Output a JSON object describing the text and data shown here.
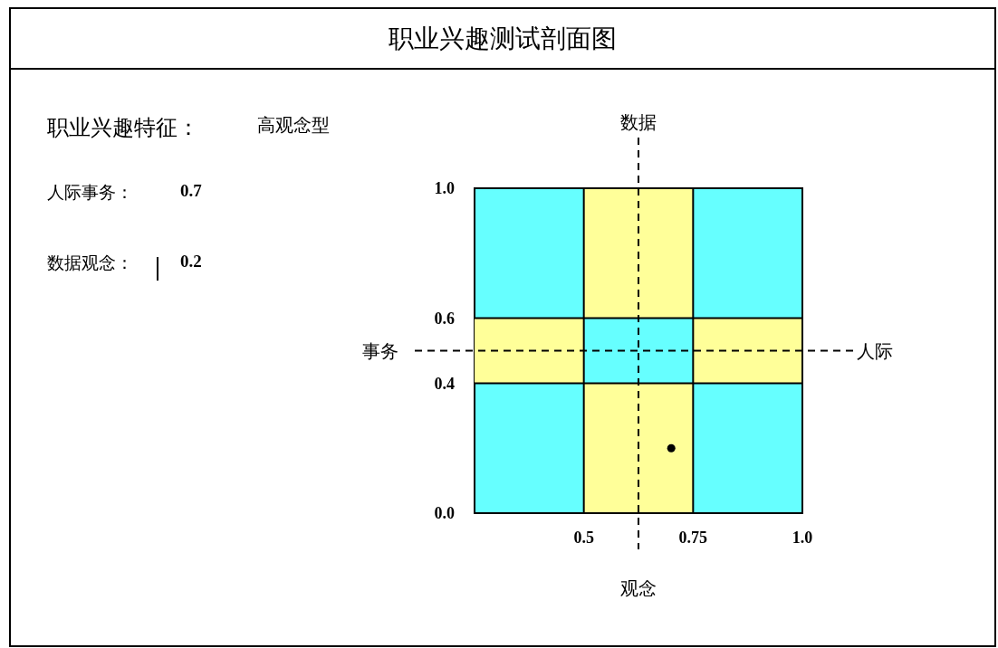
{
  "chart_data": {
    "type": "scatter",
    "title": "职业兴趣测试剖面图",
    "x": [
      0.7
    ],
    "values": [
      0.2
    ],
    "color": "#000000",
    "marker": "circle",
    "xlim": [
      0.25,
      1.0
    ],
    "ylim": [
      0.0,
      1.0
    ],
    "xticks": [
      {
        "value": 0.5,
        "label": "0.5"
      },
      {
        "value": 0.75,
        "label": "0.75"
      },
      {
        "value": 1.0,
        "label": "1.0"
      }
    ],
    "yticks": [
      {
        "value": 0,
        "label": "0.0"
      },
      {
        "value": 0.4,
        "label": "0.4"
      },
      {
        "value": 0.6,
        "label": "0.6"
      },
      {
        "value": 1.0,
        "label": "1.0"
      }
    ],
    "grid": true,
    "xlabel": "观念",
    "ylabel": "事务",
    "ref_lines": [
      {
        "axis": "x",
        "value": 0.625,
        "label": "数据",
        "line_style": "dashed",
        "color": "#000000"
      },
      {
        "axis": "y",
        "value": 0.5,
        "label": "人际",
        "line_style": "dashed",
        "color": "#000000"
      }
    ],
    "bands": [
      {
        "axis": "x",
        "from": 0.5,
        "to": 0.75,
        "color": "#ffff99"
      },
      {
        "axis": "y",
        "from": 0.4,
        "to": 0.6,
        "color": "#ffff99"
      }
    ],
    "annotations": [
      "职业兴趣特征：",
      "高观念型",
      "人际事务：",
      "0.7",
      "数据观念：",
      "0.2"
    ]
  }
}
